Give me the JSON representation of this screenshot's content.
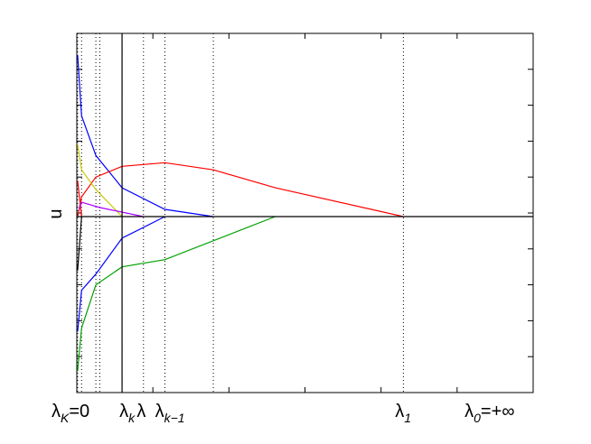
{
  "chart_data": {
    "type": "line",
    "title": "",
    "xlabel": "",
    "ylabel": "u",
    "xlim": [
      0,
      11.5
    ],
    "ylim": [
      -4.9,
      5.1
    ],
    "grid": false,
    "legend": "none",
    "dotted_lines_x": [
      0.02,
      0.12,
      0.48,
      0.58,
      1.14,
      1.68,
      2.22,
      3.44,
      8.23
    ],
    "vertical_marker_x": 1.14,
    "special_labels": [
      {
        "x": 0.0,
        "base": "λ",
        "sub": "K",
        "suffix": "=0"
      },
      {
        "x": 1.3,
        "base": "λ",
        "sub": "k",
        "suffix": ""
      },
      {
        "x": 1.74,
        "base": "λ",
        "sub": "",
        "suffix": ""
      },
      {
        "x": 2.2,
        "base": "λ",
        "sub": "k−1",
        "suffix": ""
      },
      {
        "x": 8.25,
        "base": "λ",
        "sub": "1",
        "suffix": ""
      },
      {
        "x": 10.0,
        "base": "λ",
        "sub": "0",
        "suffix": "=+∞"
      }
    ],
    "series": [
      {
        "color": "#0000ff",
        "x": [
          0.02,
          0.12,
          0.48,
          1.14,
          2.22,
          3.44
        ],
        "y": [
          4.5,
          2.8,
          1.7,
          0.8,
          0.2,
          0.0
        ]
      },
      {
        "color": "#0000ff",
        "x": [
          0.02,
          0.12,
          0.48,
          1.14,
          2.22
        ],
        "y": [
          -3.2,
          -2.05,
          -1.6,
          -0.6,
          0.0
        ]
      },
      {
        "color": "#ff0000",
        "x": [
          0.02,
          0.12,
          0.48,
          1.14,
          2.22,
          3.44,
          5.0,
          8.23
        ],
        "y": [
          0.0,
          0.55,
          1.1,
          1.4,
          1.5,
          1.3,
          0.8,
          0.0
        ]
      },
      {
        "color": "#ff0000",
        "x": [
          0.02,
          0.12
        ],
        "y": [
          1.0,
          0.0
        ]
      },
      {
        "color": "#00a000",
        "x": [
          0.02,
          0.12,
          0.48,
          1.14,
          2.22,
          5.0
        ],
        "y": [
          -4.3,
          -3.1,
          -1.9,
          -1.4,
          -1.2,
          0.0
        ]
      },
      {
        "color": "#c8c800",
        "x": [
          0.02,
          0.12,
          0.48,
          1.14
        ],
        "y": [
          2.0,
          1.3,
          0.75,
          0.0
        ]
      },
      {
        "color": "#aa00ff",
        "x": [
          0.06,
          0.12,
          0.58,
          1.68
        ],
        "y": [
          0.2,
          0.4,
          0.25,
          0.0
        ]
      },
      {
        "color": "#000000",
        "x": [
          0.02,
          0.12
        ],
        "y": [
          -1.5,
          0.0
        ]
      }
    ]
  }
}
